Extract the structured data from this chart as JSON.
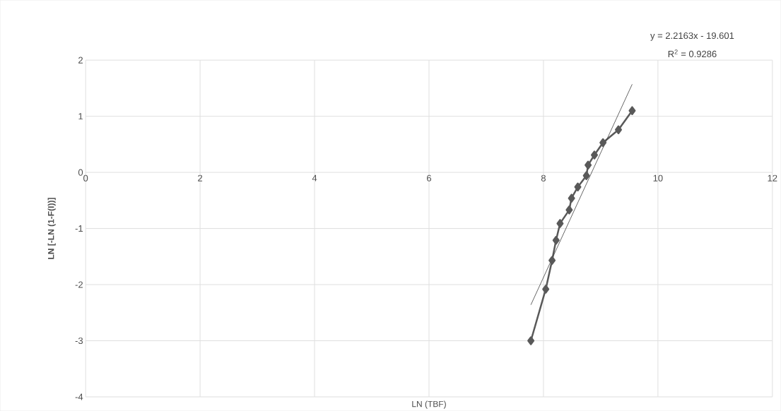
{
  "chart_data": {
    "type": "line",
    "xlabel": "LN (TBF)",
    "ylabel": "LN [-LN (1-F(I))]",
    "annotations": [
      "y = 2.2163x - 19.601",
      "R$^{2}$ = 0.9286"
    ],
    "x": [
      7.78,
      8.04,
      8.15,
      8.22,
      8.29,
      8.45,
      8.49,
      8.6,
      8.75,
      8.78,
      8.89,
      9.04,
      9.31,
      9.55
    ],
    "series": [
      {
        "color": "#595959",
        "marker": "diamond",
        "values": [
          -3.0,
          -2.08,
          -1.57,
          -1.21,
          -0.91,
          -0.67,
          -0.46,
          -0.26,
          -0.06,
          0.13,
          0.31,
          0.53,
          0.76,
          1.1
        ]
      },
      {
        "type": "line",
        "color": "#404040",
        "marker": "none",
        "x": [
          7.78,
          9.55
        ],
        "values": [
          -2.36,
          1.57
        ]
      }
    ],
    "xlim": [
      0,
      12
    ],
    "xticks": [
      0,
      2,
      4,
      6,
      8,
      10,
      12
    ],
    "ylim": [
      -4,
      2
    ],
    "yticks": [
      -4,
      -3,
      -2,
      -1,
      0,
      1,
      2
    ],
    "grid": true
  }
}
